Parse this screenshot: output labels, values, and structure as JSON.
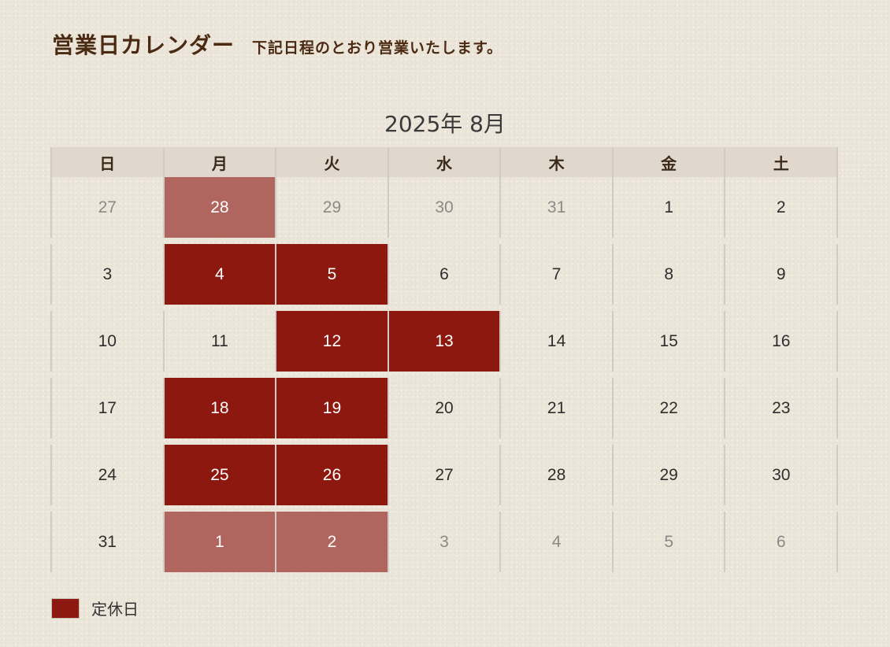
{
  "header": {
    "title": "営業日カレンダー",
    "subtitle": "下記日程のとおり営業いたします。"
  },
  "calendar": {
    "month_label": "2025年 8月",
    "weekdays": [
      "日",
      "月",
      "火",
      "水",
      "木",
      "金",
      "土"
    ],
    "weeks": [
      [
        {
          "day": "27",
          "other_month": true,
          "closed": false
        },
        {
          "day": "28",
          "other_month": true,
          "closed": true
        },
        {
          "day": "29",
          "other_month": true,
          "closed": false
        },
        {
          "day": "30",
          "other_month": true,
          "closed": false
        },
        {
          "day": "31",
          "other_month": true,
          "closed": false
        },
        {
          "day": "1",
          "other_month": false,
          "closed": false
        },
        {
          "day": "2",
          "other_month": false,
          "closed": false
        }
      ],
      [
        {
          "day": "3",
          "other_month": false,
          "closed": false
        },
        {
          "day": "4",
          "other_month": false,
          "closed": true
        },
        {
          "day": "5",
          "other_month": false,
          "closed": true
        },
        {
          "day": "6",
          "other_month": false,
          "closed": false
        },
        {
          "day": "7",
          "other_month": false,
          "closed": false
        },
        {
          "day": "8",
          "other_month": false,
          "closed": false
        },
        {
          "day": "9",
          "other_month": false,
          "closed": false
        }
      ],
      [
        {
          "day": "10",
          "other_month": false,
          "closed": false
        },
        {
          "day": "11",
          "other_month": false,
          "closed": false
        },
        {
          "day": "12",
          "other_month": false,
          "closed": true
        },
        {
          "day": "13",
          "other_month": false,
          "closed": true
        },
        {
          "day": "14",
          "other_month": false,
          "closed": false
        },
        {
          "day": "15",
          "other_month": false,
          "closed": false
        },
        {
          "day": "16",
          "other_month": false,
          "closed": false
        }
      ],
      [
        {
          "day": "17",
          "other_month": false,
          "closed": false
        },
        {
          "day": "18",
          "other_month": false,
          "closed": true
        },
        {
          "day": "19",
          "other_month": false,
          "closed": true
        },
        {
          "day": "20",
          "other_month": false,
          "closed": false
        },
        {
          "day": "21",
          "other_month": false,
          "closed": false
        },
        {
          "day": "22",
          "other_month": false,
          "closed": false
        },
        {
          "day": "23",
          "other_month": false,
          "closed": false
        }
      ],
      [
        {
          "day": "24",
          "other_month": false,
          "closed": false
        },
        {
          "day": "25",
          "other_month": false,
          "closed": true
        },
        {
          "day": "26",
          "other_month": false,
          "closed": true
        },
        {
          "day": "27",
          "other_month": false,
          "closed": false
        },
        {
          "day": "28",
          "other_month": false,
          "closed": false
        },
        {
          "day": "29",
          "other_month": false,
          "closed": false
        },
        {
          "day": "30",
          "other_month": false,
          "closed": false
        }
      ],
      [
        {
          "day": "31",
          "other_month": false,
          "closed": false
        },
        {
          "day": "1",
          "other_month": true,
          "closed": true
        },
        {
          "day": "2",
          "other_month": true,
          "closed": true
        },
        {
          "day": "3",
          "other_month": true,
          "closed": false
        },
        {
          "day": "4",
          "other_month": true,
          "closed": false
        },
        {
          "day": "5",
          "other_month": true,
          "closed": false
        },
        {
          "day": "6",
          "other_month": true,
          "closed": false
        }
      ]
    ]
  },
  "legend": {
    "label": "定休日"
  },
  "colors": {
    "closed": "#8c1810",
    "closed_other_month": "#b0665e",
    "header_bg": "#e0d8cc",
    "title_text": "#4a2a12"
  }
}
